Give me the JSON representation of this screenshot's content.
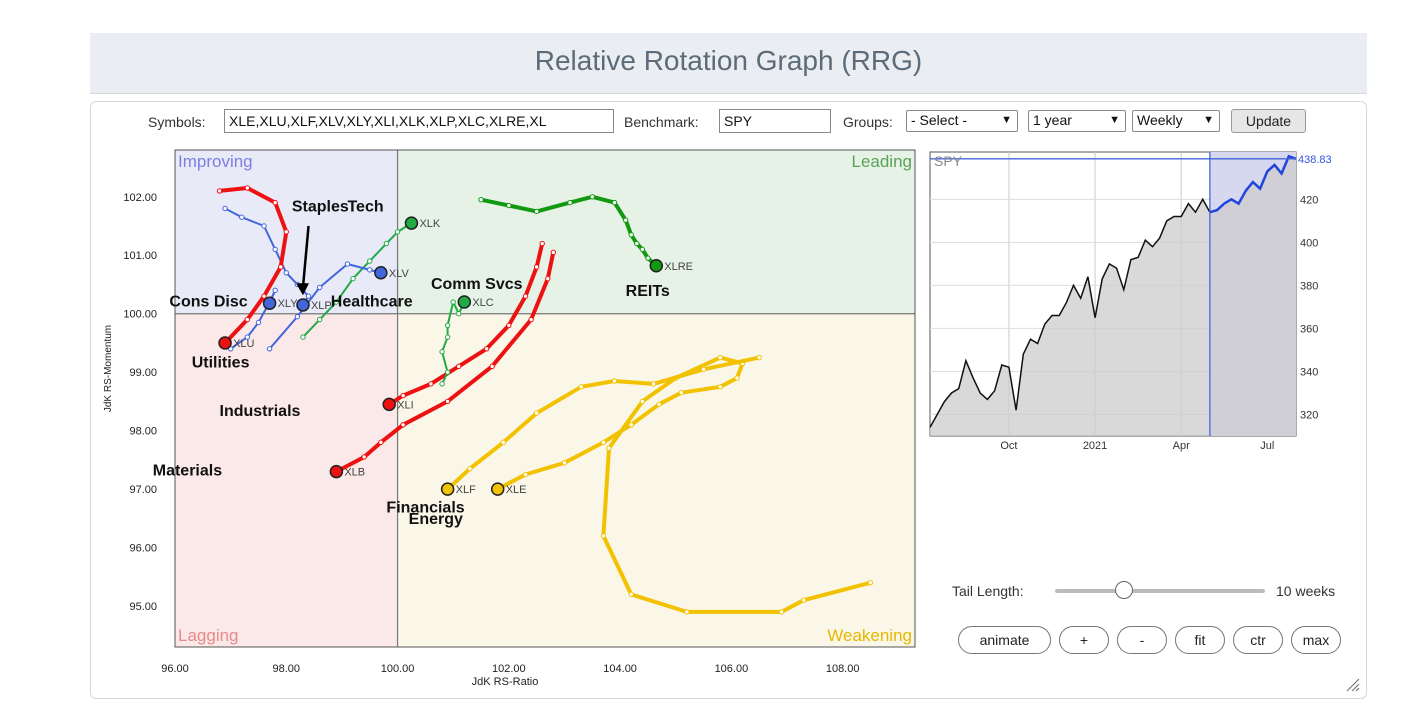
{
  "page": {
    "title": "Relative Rotation Graph (RRG)"
  },
  "controls": {
    "symbols_label": "Symbols:",
    "symbols_value": "XLE,XLU,XLF,XLV,XLY,XLI,XLK,XLP,XLC,XLRE,XL",
    "benchmark_label": "Benchmark:",
    "benchmark_value": "SPY",
    "groups_label": "Groups:",
    "groups_value": "- Select -",
    "period_value": "1 year",
    "frequency_value": "Weekly",
    "update_label": "Update"
  },
  "chart_data": [
    {
      "type": "scatter",
      "xlabel": "JdK RS-Ratio",
      "ylabel": "JdK RS-Momentum",
      "xlim": [
        96,
        109.3
      ],
      "ylim": [
        94.3,
        102.8
      ],
      "center": [
        100,
        100
      ],
      "xticks": [
        "96.00",
        "98.00",
        "100.00",
        "102.00",
        "104.00",
        "106.00",
        "108.00"
      ],
      "yticks": [
        "102.00",
        "101.00",
        "100.00",
        "99.00",
        "98.00",
        "97.00",
        "96.00",
        "95.00"
      ],
      "quadrants": {
        "improving": {
          "label": "Improving",
          "color": "#7b7fde"
        },
        "leading": {
          "label": "Leading",
          "color": "#5aa35a"
        },
        "lagging": {
          "label": "Lagging",
          "color": "#e88a8a"
        },
        "weakening": {
          "label": "Weakening",
          "color": "#e6b800"
        }
      },
      "series": [
        {
          "symbol": "XLE",
          "name": "Energy",
          "color": "#f2c200",
          "width": 4,
          "x": [
            108.5,
            107.3,
            106.9,
            105.2,
            104.2,
            103.7,
            103.8,
            104.4,
            105.0,
            105.8,
            106.2,
            106.1,
            105.8,
            105.1,
            104.7,
            104.2,
            103.7,
            103.0,
            102.3,
            101.8
          ],
          "y": [
            95.4,
            95.1,
            94.9,
            94.9,
            95.2,
            96.2,
            97.7,
            98.5,
            98.9,
            99.25,
            99.15,
            98.9,
            98.75,
            98.65,
            98.45,
            98.1,
            97.8,
            97.45,
            97.25,
            97.0
          ]
        },
        {
          "symbol": "XLF",
          "name": "Financials",
          "color": "#f2c200",
          "width": 4,
          "x": [
            106.5,
            105.5,
            104.6,
            103.9,
            103.3,
            102.5,
            101.9,
            101.3,
            100.9
          ],
          "y": [
            99.25,
            99.05,
            98.8,
            98.85,
            98.75,
            98.3,
            97.8,
            97.35,
            97.0
          ]
        },
        {
          "symbol": "XLB",
          "name": "Materials",
          "color": "#ee1111",
          "width": 4,
          "x": [
            102.8,
            102.7,
            102.4,
            101.7,
            100.9,
            100.1,
            99.7,
            99.4,
            98.9
          ],
          "y": [
            101.05,
            100.6,
            99.9,
            99.1,
            98.5,
            98.1,
            97.8,
            97.55,
            97.3
          ]
        },
        {
          "symbol": "XLI",
          "name": "Industrials",
          "color": "#ee1111",
          "width": 4,
          "x": [
            102.6,
            102.5,
            102.3,
            102.0,
            101.6,
            101.1,
            100.6,
            100.1,
            99.85
          ],
          "y": [
            101.2,
            100.8,
            100.3,
            99.8,
            99.4,
            99.1,
            98.8,
            98.6,
            98.45
          ]
        },
        {
          "symbol": "XLRE",
          "name": "REITs",
          "color": "#119911",
          "width": 4,
          "x": [
            101.5,
            102.0,
            102.5,
            103.1,
            103.5,
            103.9,
            104.1,
            104.2,
            104.3,
            104.4,
            104.5,
            104.65
          ],
          "y": [
            101.95,
            101.85,
            101.75,
            101.9,
            102.0,
            101.9,
            101.6,
            101.35,
            101.2,
            101.1,
            100.95,
            100.82
          ]
        },
        {
          "symbol": "XLK",
          "name": "Tech",
          "color": "#22aa44",
          "width": 2,
          "x": [
            98.3,
            98.6,
            98.9,
            99.2,
            99.5,
            99.8,
            100.0,
            100.25
          ],
          "y": [
            99.6,
            99.9,
            100.2,
            100.6,
            100.9,
            101.2,
            101.4,
            101.55
          ]
        },
        {
          "symbol": "XLC",
          "name": "Comm Svcs",
          "color": "#22aa44",
          "width": 2,
          "x": [
            100.8,
            100.9,
            100.8,
            100.9,
            100.9,
            101.0,
            101.1,
            101.2
          ],
          "y": [
            98.8,
            99.0,
            99.35,
            99.6,
            99.8,
            100.2,
            100.0,
            100.2
          ]
        },
        {
          "symbol": "XLV",
          "name": "Healthcare",
          "color": "#4466dd",
          "width": 2,
          "x": [
            97.7,
            98.2,
            98.6,
            99.1,
            99.5,
            99.7
          ],
          "y": [
            99.4,
            99.95,
            100.45,
            100.85,
            100.75,
            100.7
          ]
        },
        {
          "symbol": "XLP",
          "name": "Staples",
          "color": "#4466dd",
          "width": 2,
          "x": [
            96.9,
            97.2,
            97.6,
            97.8,
            98.0,
            98.2,
            98.4,
            98.3
          ],
          "y": [
            101.8,
            101.65,
            101.5,
            101.1,
            100.7,
            100.5,
            100.3,
            100.15
          ]
        },
        {
          "symbol": "XLY",
          "name": "Cons Disc",
          "color": "#4466dd",
          "width": 2,
          "x": [
            97.0,
            97.3,
            97.5,
            97.7,
            97.8,
            97.7
          ],
          "y": [
            99.4,
            99.6,
            99.85,
            100.2,
            100.4,
            100.18
          ]
        },
        {
          "symbol": "XLU",
          "name": "Utilities",
          "color": "#ee1111",
          "width": 4,
          "x": [
            96.8,
            97.3,
            97.8,
            98.0,
            97.9,
            97.6,
            97.3,
            96.9
          ],
          "y": [
            102.1,
            102.15,
            101.9,
            101.4,
            100.8,
            100.3,
            99.9,
            99.5
          ]
        }
      ],
      "name_labels": [
        {
          "text": "Staples",
          "x": 98.1,
          "y": 101.75
        },
        {
          "text": "Tech",
          "x": 99.1,
          "y": 101.75
        },
        {
          "text": "Cons Disc",
          "x": 95.9,
          "y": 100.12
        },
        {
          "text": "Healthcare",
          "x": 98.8,
          "y": 100.12
        },
        {
          "text": "Comm Svcs",
          "x": 100.6,
          "y": 100.42
        },
        {
          "text": "REITs",
          "x": 104.1,
          "y": 100.3
        },
        {
          "text": "Utilities",
          "x": 96.3,
          "y": 99.08
        },
        {
          "text": "Industrials",
          "x": 96.8,
          "y": 98.25
        },
        {
          "text": "Materials",
          "x": 95.6,
          "y": 97.23
        },
        {
          "text": "Financials",
          "x": 99.8,
          "y": 96.6
        },
        {
          "text": "Energy",
          "x": 100.2,
          "y": 96.4
        }
      ],
      "arrow": {
        "from": [
          98.4,
          101.5
        ],
        "to": [
          98.3,
          100.35
        ]
      }
    },
    {
      "type": "area",
      "title": "SPY",
      "xticks": [
        "Oct",
        "2021",
        "Apr",
        "Jul"
      ],
      "xtick_positions": [
        11,
        23,
        35,
        47
      ],
      "yticks": [
        "420",
        "400",
        "380",
        "360",
        "340",
        "320"
      ],
      "ylim": [
        310,
        442
      ],
      "last_value": "438.83",
      "values": [
        314,
        320,
        326,
        330,
        332,
        345,
        337,
        330,
        327,
        331,
        343,
        342,
        322,
        348,
        355,
        353,
        362,
        366,
        366,
        372,
        380,
        374,
        384,
        365,
        383,
        390,
        388,
        378,
        392,
        393,
        401,
        398,
        402,
        410,
        412,
        412,
        418,
        414,
        420,
        414,
        415,
        418,
        420,
        418,
        424,
        428,
        425,
        433,
        436,
        432,
        440,
        438.83
      ],
      "highlight_from_index": 39
    }
  ],
  "tail": {
    "label": "Tail Length:",
    "value_label": "10 weeks",
    "fraction": 0.33
  },
  "buttons": {
    "animate": "animate",
    "plus": "+",
    "minus": "-",
    "fit": "fit",
    "ctr": "ctr",
    "max": "max"
  }
}
